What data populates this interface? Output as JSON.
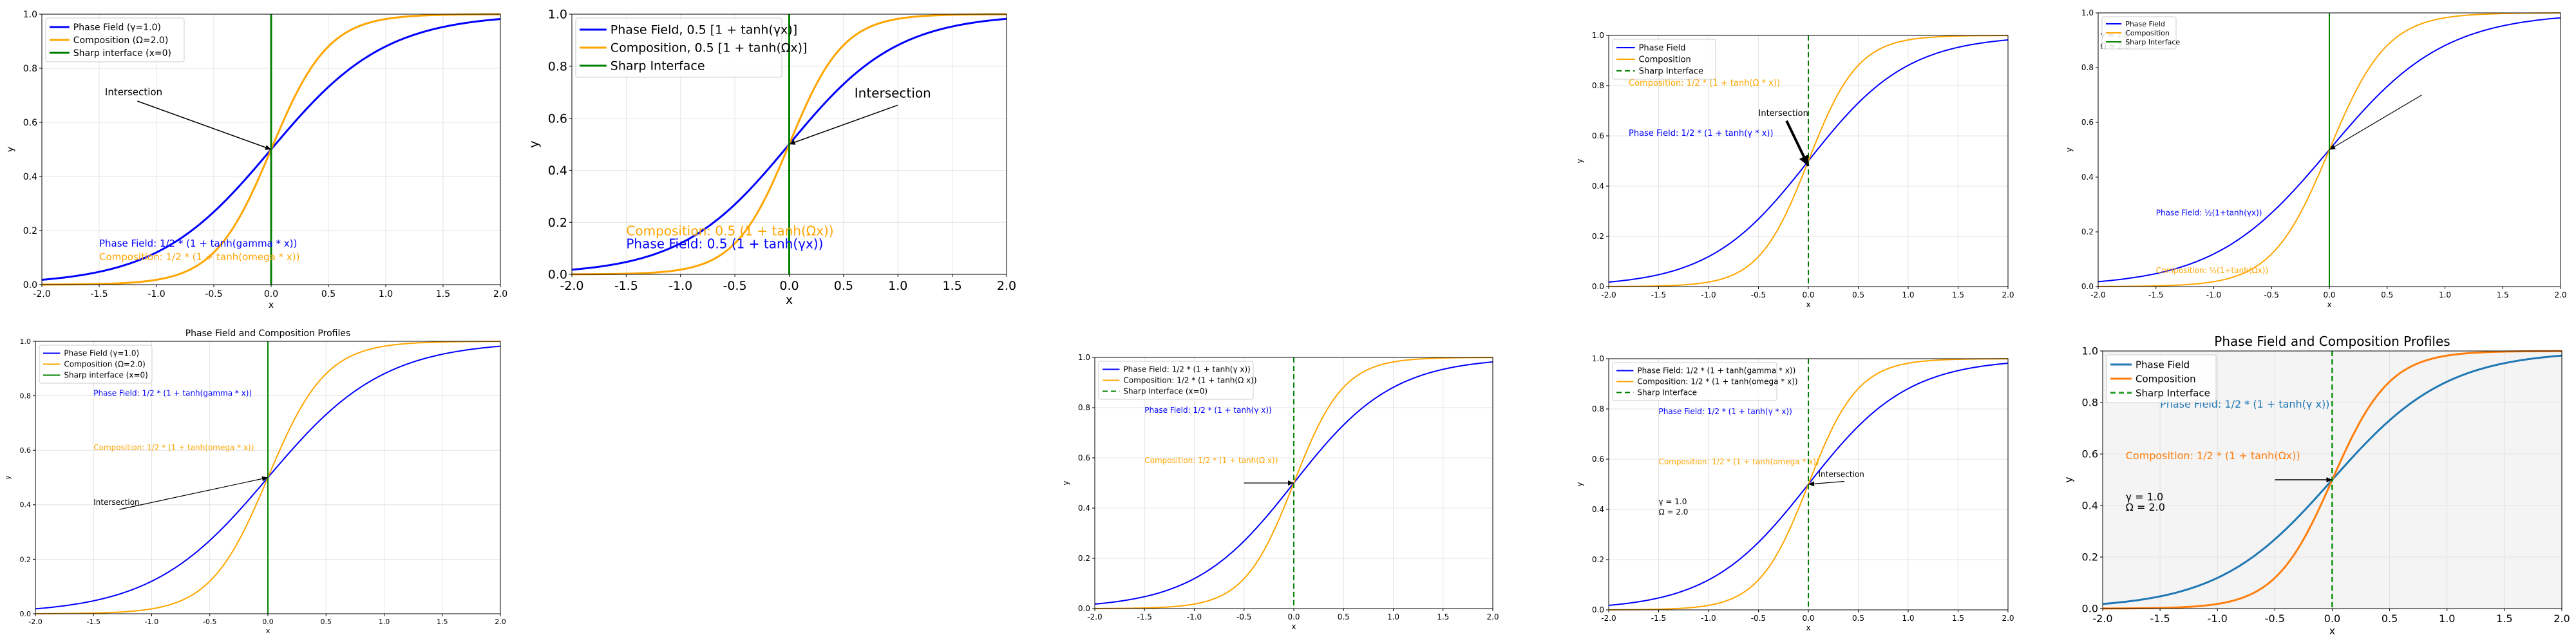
{
  "colors": {
    "phase_blue": "#0000ff",
    "composition_orange": "#ffa500",
    "sharp_green": "#008000",
    "tab_blue": "#1f77b4",
    "tab_orange": "#ff7f0e",
    "tab_green": "#2ca02c"
  },
  "chart_data": [
    {
      "type": "line",
      "title": "",
      "xlabel": "x",
      "ylabel": "y",
      "xlim": [
        -2,
        2
      ],
      "ylim": [
        0,
        1
      ],
      "xticks": [
        "-2.0",
        "-1.5",
        "-1.0",
        "-0.5",
        "0.0",
        "0.5",
        "1.0",
        "1.5",
        "2.0"
      ],
      "yticks": [
        "0.0",
        "0.2",
        "0.4",
        "0.6",
        "0.8",
        "1.0"
      ],
      "grid": true,
      "legend": "top-left",
      "series": [
        {
          "name": "Phase Field (γ=1.0)",
          "function": "0.5*(1+tanh(1.0*x))",
          "color": "#0000ff",
          "style": "solid"
        },
        {
          "name": "Composition (Ω=2.0)",
          "function": "0.5*(1+tanh(2.0*x))",
          "color": "#ffa500",
          "style": "solid"
        },
        {
          "name": "Sharp interface (x=0)",
          "vertical": 0,
          "color": "#008000",
          "style": "solid"
        }
      ],
      "annotations": [
        {
          "text": "Intersection",
          "at": [
            -1.45,
            0.7
          ],
          "arrow_to": [
            0,
            0.5
          ]
        },
        {
          "text": "Phase Field: 1/2 * (1 + tanh(gamma * x))",
          "at": [
            -1.5,
            0.14
          ],
          "color": "#0000ff"
        },
        {
          "text": "Composition: 1/2 * (1 + tanh(omega * x))",
          "at": [
            -1.5,
            0.09
          ],
          "color": "#ffa500"
        }
      ]
    },
    {
      "type": "line",
      "title": "",
      "xlabel": "x",
      "ylabel": "y",
      "xlim": [
        -2,
        2
      ],
      "ylim": [
        0,
        1
      ],
      "xticks": [
        "-2.0",
        "-1.5",
        "-1.0",
        "-0.5",
        "0.0",
        "0.5",
        "1.0",
        "1.5",
        "2.0"
      ],
      "yticks": [
        "0.0",
        "0.2",
        "0.4",
        "0.6",
        "0.8",
        "1.0"
      ],
      "grid": true,
      "legend": "top-left",
      "series": [
        {
          "name": "Phase Field, 0.5 [1 + tanh(γx)]",
          "function": "0.5*(1+tanh(1.0*x))",
          "color": "#0000ff",
          "style": "solid"
        },
        {
          "name": "Composition, 0.5 [1 + tanh(Ωx)]",
          "function": "0.5*(1+tanh(2.0*x))",
          "color": "#ffa500",
          "style": "solid"
        },
        {
          "name": "Sharp Interface",
          "vertical": 0,
          "color": "#008000",
          "style": "solid"
        }
      ],
      "annotations": [
        {
          "text": "Intersection",
          "at": [
            0.6,
            0.68
          ],
          "arrow_to": [
            0,
            0.5
          ]
        },
        {
          "text": "Composition: 0.5 (1 + tanh(Ωx))",
          "at": [
            -1.5,
            0.15
          ],
          "color": "#ffa500"
        },
        {
          "text": "Phase Field: 0.5 (1 + tanh(γx))",
          "at": [
            -1.5,
            0.1
          ],
          "color": "#0000ff"
        }
      ]
    },
    {
      "type": "line",
      "title": "",
      "xlabel": "x",
      "ylabel": "y",
      "xlim": [
        -2,
        2
      ],
      "ylim": [
        0,
        1
      ],
      "xticks": [
        "-2.0",
        "-1.5",
        "-1.0",
        "-0.5",
        "0.0",
        "0.5",
        "1.0",
        "1.5",
        "2.0"
      ],
      "yticks": [
        "0.0",
        "0.2",
        "0.4",
        "0.6",
        "0.8",
        "1.0"
      ],
      "grid": true,
      "legend": "top-left",
      "series": [
        {
          "name": "Phase Field",
          "function": "0.5*(1+tanh(1.0*x))",
          "color": "#0000ff",
          "style": "solid"
        },
        {
          "name": "Composition",
          "function": "0.5*(1+tanh(2.0*x))",
          "color": "#ffa500",
          "style": "solid"
        },
        {
          "name": "Sharp Interface",
          "vertical": 0,
          "color": "#008000",
          "style": "dashed"
        }
      ],
      "annotations": [
        {
          "text": "Composition: 1/2 * (1 + tanh(Ω * x))",
          "at": [
            -1.8,
            0.8
          ],
          "color": "#ffa500"
        },
        {
          "text": "Intersection",
          "at": [
            -0.5,
            0.68
          ],
          "arrow_to": [
            0,
            0.48
          ],
          "heavy_arrow": true
        },
        {
          "text": "Phase Field: 1/2 * (1 + tanh(γ * x))",
          "at": [
            -1.8,
            0.6
          ],
          "color": "#0000ff"
        }
      ]
    },
    {
      "type": "line",
      "title": "",
      "xlabel": "x",
      "ylabel": "y",
      "xlim": [
        -2,
        2
      ],
      "ylim": [
        0,
        1
      ],
      "xticks": [
        "-2.0",
        "-1.5",
        "-1.0",
        "-0.5",
        "0.0",
        "0.5",
        "1.0",
        "1.5",
        "2.0"
      ],
      "yticks": [
        "0.0",
        "0.2",
        "0.4",
        "0.6",
        "0.8",
        "1.0"
      ],
      "grid": false,
      "legend": "top-left",
      "series": [
        {
          "name": "Phase Field",
          "function": "0.5*(1+tanh(1.0*x))",
          "color": "#0000ff",
          "style": "solid"
        },
        {
          "name": "Composition",
          "function": "0.5*(1+tanh(2.0*x))",
          "color": "#ffa500",
          "style": "solid"
        },
        {
          "name": "Sharp Interface",
          "vertical": 0,
          "color": "#008000",
          "style": "solid"
        }
      ],
      "annotations": [
        {
          "text": "γ = 1.0",
          "at": [
            -1.98,
            0.91
          ]
        },
        {
          "text": "Ω = 2.0",
          "at": [
            -1.98,
            0.87
          ]
        },
        {
          "text": "Phase Field: ½(1+tanh(γx))",
          "at": [
            -1.5,
            0.26
          ],
          "color": "#0000ff"
        },
        {
          "text": "Composition: ½(1+tanh(Ωx))",
          "at": [
            -1.5,
            0.05
          ],
          "color": "#ffa500"
        },
        {
          "text": "",
          "at": [
            0.8,
            0.7
          ],
          "arrow_to": [
            0,
            0.5
          ]
        }
      ]
    },
    {
      "type": "line",
      "title": "Phase Field and Composition Profiles",
      "xlabel": "x",
      "ylabel": "y",
      "xlim": [
        -2,
        2
      ],
      "ylim": [
        0,
        1
      ],
      "xticks": [
        "-2.0",
        "-1.5",
        "-1.0",
        "-0.5",
        "0.0",
        "0.5",
        "1.0",
        "1.5",
        "2.0"
      ],
      "yticks": [
        "0.0",
        "0.2",
        "0.4",
        "0.6",
        "0.8",
        "1.0"
      ],
      "grid": true,
      "legend": "top-left",
      "series": [
        {
          "name": "Phase Field (γ=1.0)",
          "function": "0.5*(1+tanh(1.0*x))",
          "color": "#0000ff",
          "style": "solid"
        },
        {
          "name": "Composition (Ω=2.0)",
          "function": "0.5*(1+tanh(2.0*x))",
          "color": "#ffa500",
          "style": "solid"
        },
        {
          "name": "Sharp interface (x=0)",
          "vertical": 0,
          "color": "#008000",
          "style": "solid"
        }
      ],
      "annotations": [
        {
          "text": "Phase Field: 1/2 * (1 + tanh(gamma * x))",
          "at": [
            -1.5,
            0.8
          ],
          "color": "#0000ff"
        },
        {
          "text": "Composition: 1/2 * (1 + tanh(omega * x))",
          "at": [
            -1.5,
            0.6
          ],
          "color": "#ffa500"
        },
        {
          "text": "Intersection",
          "at": [
            -1.5,
            0.4
          ],
          "arrow_to": [
            0,
            0.5
          ]
        }
      ]
    },
    {
      "type": "line",
      "title": "",
      "xlabel": "x",
      "ylabel": "y",
      "xlim": [
        -2,
        2
      ],
      "ylim": [
        0,
        1
      ],
      "xticks": [
        "-2.0",
        "-1.5",
        "-1.0",
        "-0.5",
        "0.0",
        "0.5",
        "1.0",
        "1.5",
        "2.0"
      ],
      "yticks": [
        "0.0",
        "0.2",
        "0.4",
        "0.6",
        "0.8",
        "1.0"
      ],
      "grid": true,
      "legend": "top-left",
      "series": [
        {
          "name": "Phase Field: 1/2 * (1 + tanh(γ x))",
          "function": "0.5*(1+tanh(1.0*x))",
          "color": "#0000ff",
          "style": "solid"
        },
        {
          "name": "Composition: 1/2 * (1 + tanh(Ω x))",
          "function": "0.5*(1+tanh(2.0*x))",
          "color": "#ffa500",
          "style": "solid"
        },
        {
          "name": "Sharp Interface (x=0)",
          "vertical": 0,
          "color": "#008000",
          "style": "dashed"
        }
      ],
      "annotations": [
        {
          "text": "Phase Field: 1/2 * (1 + tanh(γ x))",
          "at": [
            -1.5,
            0.78
          ],
          "color": "#0000ff"
        },
        {
          "text": "Composition: 1/2 * (1 + tanh(Ω x))",
          "at": [
            -1.5,
            0.58
          ],
          "color": "#ffa500"
        },
        {
          "text": "",
          "at": [
            -0.5,
            0.5
          ],
          "arrow_to": [
            0,
            0.5
          ]
        }
      ]
    },
    {
      "type": "line",
      "title": "",
      "xlabel": "x",
      "ylabel": "y",
      "xlim": [
        -2,
        2
      ],
      "ylim": [
        0,
        1
      ],
      "xticks": [
        "-2.0",
        "-1.5",
        "-1.0",
        "-0.5",
        "0.0",
        "0.5",
        "1.0",
        "1.5",
        "2.0"
      ],
      "yticks": [
        "0.0",
        "0.2",
        "0.4",
        "0.6",
        "0.8",
        "1.0"
      ],
      "grid": true,
      "legend": "top-left",
      "series": [
        {
          "name": "Phase Field: 1/2 * (1 + tanh(gamma * x))",
          "function": "0.5*(1+tanh(1.0*x))",
          "color": "#0000ff",
          "style": "solid"
        },
        {
          "name": "Composition: 1/2 * (1 + tanh(omega * x))",
          "function": "0.5*(1+tanh(2.0*x))",
          "color": "#ffa500",
          "style": "solid"
        },
        {
          "name": "Sharp Interface",
          "vertical": 0,
          "color": "#008000",
          "style": "dashed"
        }
      ],
      "annotations": [
        {
          "text": "Phase Field: 1/2 * (1 + tanh(γ * x))",
          "at": [
            -1.5,
            0.78
          ],
          "color": "#0000ff"
        },
        {
          "text": "Composition: 1/2 * (1 + tanh(omega * x))",
          "at": [
            -1.5,
            0.58
          ],
          "color": "#ffa500"
        },
        {
          "text": "Intersection",
          "at": [
            0.1,
            0.53
          ],
          "arrow_to": [
            0,
            0.5
          ]
        },
        {
          "text": "γ = 1.0",
          "at": [
            -1.5,
            0.42
          ]
        },
        {
          "text": "Ω = 2.0",
          "at": [
            -1.5,
            0.38
          ]
        }
      ]
    },
    {
      "type": "line",
      "title": "Phase Field and Composition Profiles",
      "xlabel": "x",
      "ylabel": "y",
      "xlim": [
        -2,
        2
      ],
      "ylim": [
        0,
        1
      ],
      "xticks": [
        "-2.0",
        "-1.5",
        "-1.0",
        "-0.5",
        "0.0",
        "0.5",
        "1.0",
        "1.5",
        "2.0"
      ],
      "yticks": [
        "0.0",
        "0.2",
        "0.4",
        "0.6",
        "0.8",
        "1.0"
      ],
      "grid": true,
      "legend": "top-left",
      "background": "#f4f4f4",
      "series": [
        {
          "name": "Phase Field",
          "function": "0.5*(1+tanh(1.0*x))",
          "color": "#1f77b4",
          "style": "solid"
        },
        {
          "name": "Composition",
          "function": "0.5*(1+tanh(2.0*x))",
          "color": "#ff7f0e",
          "style": "solid"
        },
        {
          "name": "Sharp Interface",
          "vertical": 0,
          "color": "#2ca02c",
          "style": "dashed"
        }
      ],
      "annotations": [
        {
          "text": "Phase Field: 1/2 * (1 + tanh(γ x))",
          "at": [
            -1.5,
            0.78
          ],
          "color": "#1f77b4"
        },
        {
          "text": "Composition: 1/2 * (1 + tanh(Ωx))",
          "at": [
            -1.8,
            0.58
          ],
          "color": "#ff7f0e"
        },
        {
          "text": "γ = 1.0",
          "at": [
            -1.8,
            0.42
          ]
        },
        {
          "text": "Ω = 2.0",
          "at": [
            -1.8,
            0.38
          ]
        },
        {
          "text": "",
          "at": [
            -0.5,
            0.5
          ],
          "arrow_to": [
            0,
            0.5
          ]
        }
      ]
    }
  ]
}
